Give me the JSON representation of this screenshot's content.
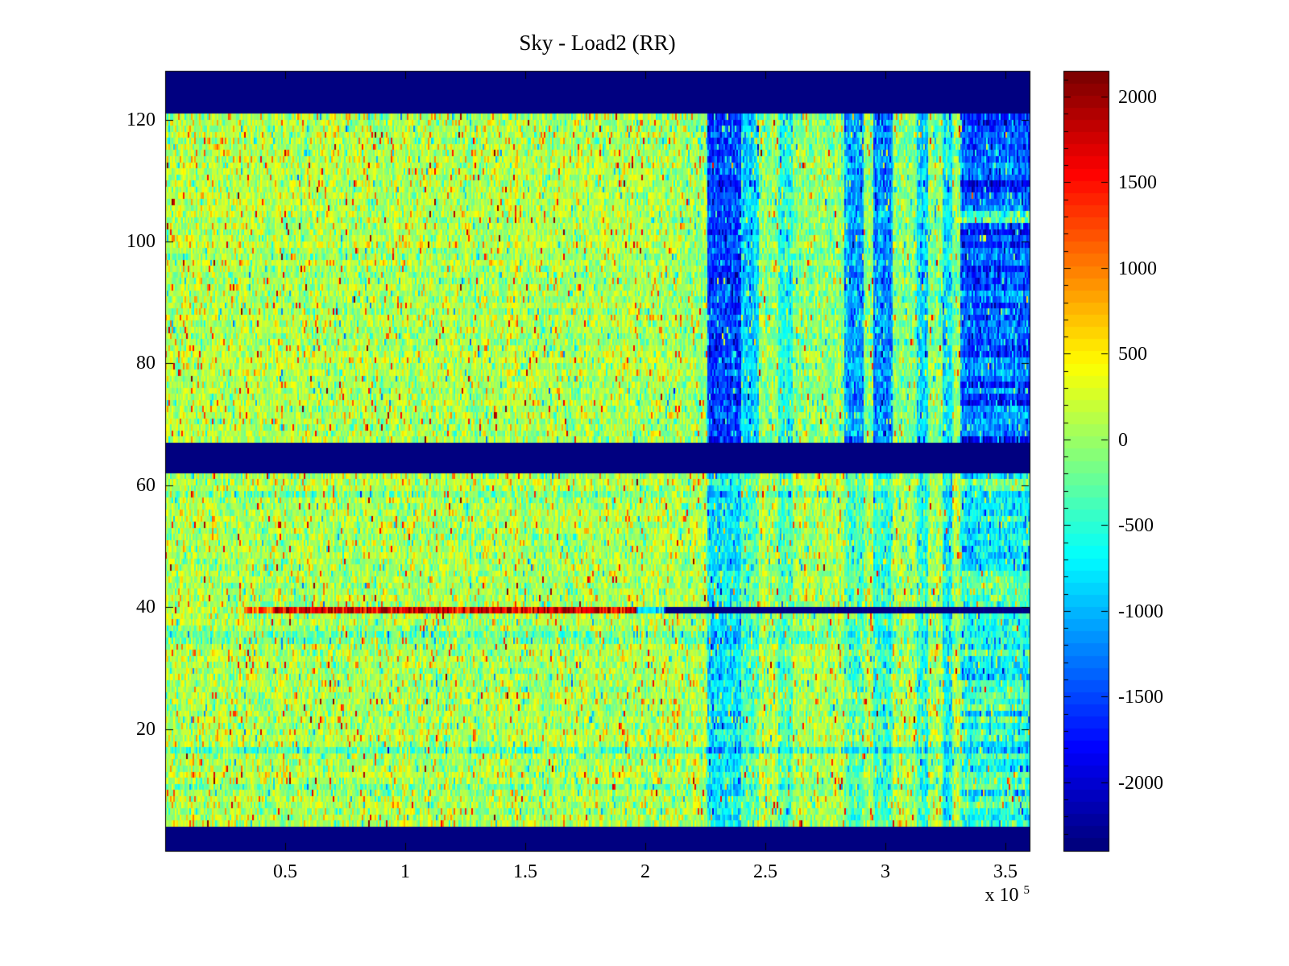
{
  "chart_data": {
    "type": "heatmap",
    "title": "Sky - Load2 (RR)",
    "colormap": "jet",
    "seed": 7,
    "x_range": [
      0,
      360000
    ],
    "y_range": [
      0,
      128
    ],
    "clim": [
      -2400,
      2150
    ],
    "x_axis": {
      "exponent_prefix": "x 10",
      "exponent_power": "5",
      "ticks": [
        {
          "value": 50000,
          "label": "0.5"
        },
        {
          "value": 100000,
          "label": "1"
        },
        {
          "value": 150000,
          "label": "1.5"
        },
        {
          "value": 200000,
          "label": "2"
        },
        {
          "value": 250000,
          "label": "2.5"
        },
        {
          "value": 300000,
          "label": "3"
        },
        {
          "value": 350000,
          "label": "3.5"
        }
      ]
    },
    "y_axis": {
      "ticks": [
        {
          "value": 20,
          "label": "20"
        },
        {
          "value": 40,
          "label": "40"
        },
        {
          "value": 60,
          "label": "60"
        },
        {
          "value": 80,
          "label": "80"
        },
        {
          "value": 100,
          "label": "100"
        },
        {
          "value": 120,
          "label": "120"
        }
      ]
    },
    "colorbar": {
      "ticks": [
        {
          "value": 2000,
          "label": "2000"
        },
        {
          "value": 1500,
          "label": "1500"
        },
        {
          "value": 1000,
          "label": "1000"
        },
        {
          "value": 500,
          "label": "500"
        },
        {
          "value": 0,
          "label": "0"
        },
        {
          "value": -500,
          "label": "-500"
        },
        {
          "value": -1000,
          "label": "-1000"
        },
        {
          "value": -1500,
          "label": "-1500"
        },
        {
          "value": -2000,
          "label": "-2000"
        }
      ],
      "minor_tick_step": 100
    },
    "background_noise": {
      "mean": 70,
      "std": 250,
      "col_sigma": 70,
      "row_sigma": 45,
      "hot_prob": 0.05,
      "hot_add_min": 450,
      "hot_add_max": 1150,
      "cold_prob": 0.05,
      "cold_add_min": -900,
      "cold_add_max": -350,
      "rare_hot_prob": 0.008,
      "rare_hot_add": 1600
    },
    "lower_warm": {
      "prob": 0.05,
      "add": 380
    },
    "hot_rows": {
      "y0": 112,
      "y1": 121,
      "prob": 0.06,
      "add": 650
    },
    "upper_cool": {
      "x_start": 200000,
      "x_end": 230000,
      "delta": -160
    },
    "solid_value": -2600,
    "solid_row_bands": [
      {
        "y0": 0,
        "y1": 3.5
      },
      {
        "y0": 62.5,
        "y1": 67
      },
      {
        "y0": 121,
        "y1": 128
      }
    ],
    "vertical_bands": [
      {
        "x0": 226000,
        "x1": 240000,
        "delta_upper": -1500,
        "delta_lower": -850,
        "stripe": 300
      },
      {
        "x0": 240000,
        "x1": 247000,
        "delta_upper": -800,
        "delta_lower": -400,
        "stripe": 200
      },
      {
        "x0": 255000,
        "x1": 261000,
        "delta_upper": -500,
        "delta_lower": -430,
        "stripe": 150
      },
      {
        "x0": 283000,
        "x1": 291000,
        "delta_upper": -1050,
        "delta_lower": -380,
        "stripe": 250
      },
      {
        "x0": 295000,
        "x1": 303000,
        "delta_upper": -1150,
        "delta_lower": -520,
        "stripe": 250
      },
      {
        "x0": 313000,
        "x1": 318000,
        "delta_upper": -750,
        "delta_lower": -600,
        "stripe": 200
      },
      {
        "x0": 324000,
        "x1": 328000,
        "delta_upper": -600,
        "delta_lower": -700,
        "stripe": 200
      },
      {
        "x0": 331000,
        "x1": 360000,
        "delta_upper": -1350,
        "delta_lower": -550,
        "stripe": 900
      }
    ],
    "rows": [
      {
        "y": 39,
        "x0": 33000,
        "x1": 45000,
        "mode": "set",
        "value": 1200,
        "jitter": 500,
        "desc": "bright-line-onset"
      },
      {
        "y": 39,
        "x0": 45000,
        "x1": 196000,
        "mode": "set",
        "value": 1700,
        "jitter": 350,
        "desc": "bright-red-line"
      },
      {
        "y": 39,
        "x0": 196000,
        "x1": 208000,
        "mode": "set",
        "value": -900,
        "jitter": 300,
        "desc": "line-transition"
      },
      {
        "y": 39,
        "x0": 208000,
        "x1": 360000,
        "mode": "set",
        "value": -2450,
        "jitter": 120,
        "desc": "dark-navy-line"
      },
      {
        "y": 16,
        "x0": 0,
        "x1": 360000,
        "mode": "add",
        "value": -420,
        "jitter": 120,
        "desc": "cyan-streak"
      },
      {
        "y": 34,
        "x0": 0,
        "x1": 360000,
        "mode": "add",
        "value": -340,
        "jitter": 100,
        "desc": "cyan-streak"
      },
      {
        "y": 35,
        "x0": 0,
        "x1": 360000,
        "mode": "add",
        "value": -260,
        "jitter": 100,
        "desc": "cyan-streak"
      },
      {
        "y": 58,
        "x0": 0,
        "x1": 360000,
        "mode": "add",
        "value": -260,
        "jitter": 100,
        "desc": "cyan-streak"
      },
      {
        "y": 10,
        "x0": 0,
        "x1": 360000,
        "mode": "add",
        "value": -240,
        "jitter": 100,
        "desc": "cyan-streak"
      },
      {
        "y": 103,
        "x0": 331000,
        "x1": 360000,
        "mode": "add",
        "value": 700,
        "jitter": 200,
        "desc": "light-row-in-dark-band"
      },
      {
        "y": 104,
        "x0": 331000,
        "x1": 360000,
        "mode": "add",
        "value": 600,
        "jitter": 200,
        "desc": "light-row-in-dark-band"
      }
    ]
  }
}
